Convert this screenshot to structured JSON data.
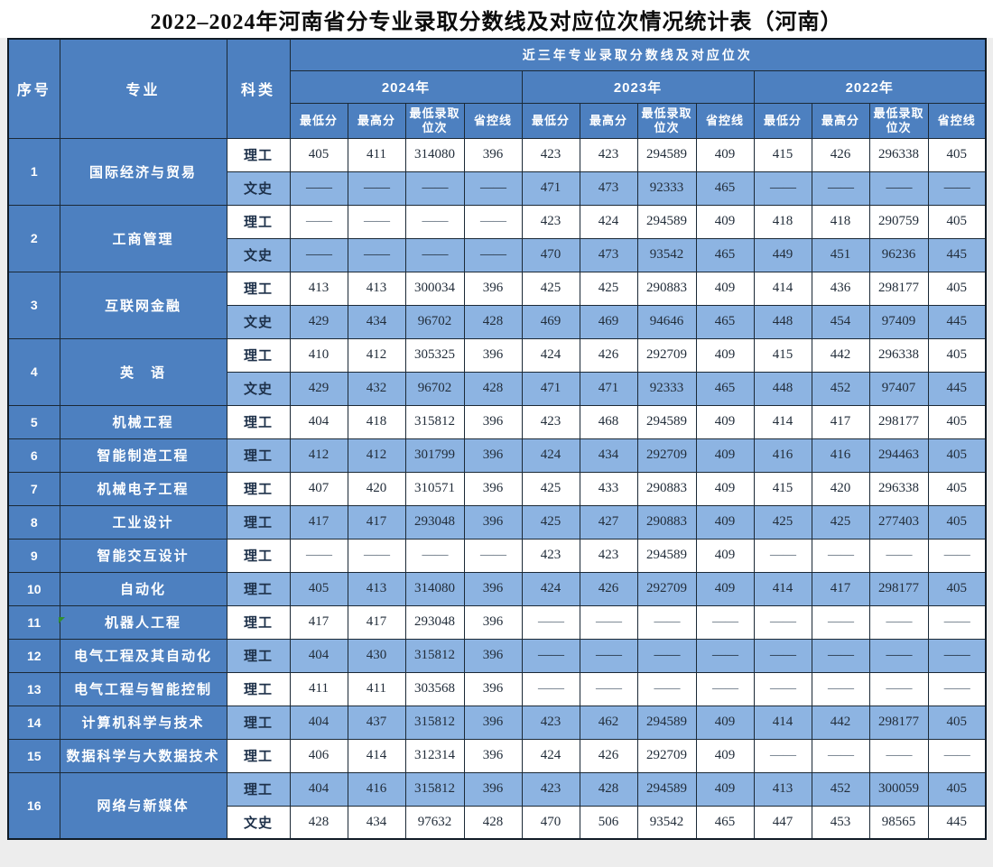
{
  "page": {
    "title": "2022–2024年河南省分专业录取分数线及对应位次情况统计表（河南）"
  },
  "colors": {
    "header_blue": "#4d80c0",
    "zebra_light_blue": "#8db4e2",
    "zebra_white": "#ffffff",
    "grid_border": "#1b2936",
    "flag_green": "#2f8f2f"
  },
  "table": {
    "corner": {
      "index": "序号",
      "major": "专业",
      "category": "科类"
    },
    "span_header": "近三年专业录取分数线及对应位次",
    "year_groups": [
      "2024年",
      "2023年",
      "2022年"
    ],
    "metric_headers": [
      "最低分",
      "最高分",
      "最低录取位次",
      "省控线"
    ],
    "empty_marker": "——",
    "rows": [
      {
        "index": "1",
        "major": "国际经济与贸易",
        "subrows": [
          {
            "category": "理工",
            "values": [
              "405",
              "411",
              "314080",
              "396",
              "423",
              "423",
              "294589",
              "409",
              "415",
              "426",
              "296338",
              "405"
            ]
          },
          {
            "category": "文史",
            "values": [
              "——",
              "——",
              "——",
              "——",
              "471",
              "473",
              "92333",
              "465",
              "——",
              "——",
              "——",
              "——"
            ]
          }
        ]
      },
      {
        "index": "2",
        "major": "工商管理",
        "subrows": [
          {
            "category": "理工",
            "values": [
              "——",
              "——",
              "——",
              "——",
              "423",
              "424",
              "294589",
              "409",
              "418",
              "418",
              "290759",
              "405"
            ]
          },
          {
            "category": "文史",
            "values": [
              "——",
              "——",
              "——",
              "——",
              "470",
              "473",
              "93542",
              "465",
              "449",
              "451",
              "96236",
              "445"
            ]
          }
        ]
      },
      {
        "index": "3",
        "major": "互联网金融",
        "subrows": [
          {
            "category": "理工",
            "values": [
              "413",
              "413",
              "300034",
              "396",
              "425",
              "425",
              "290883",
              "409",
              "414",
              "436",
              "298177",
              "405"
            ]
          },
          {
            "category": "文史",
            "values": [
              "429",
              "434",
              "96702",
              "428",
              "469",
              "469",
              "94646",
              "465",
              "448",
              "454",
              "97409",
              "445"
            ]
          }
        ]
      },
      {
        "index": "4",
        "major": "英　语",
        "subrows": [
          {
            "category": "理工",
            "values": [
              "410",
              "412",
              "305325",
              "396",
              "424",
              "426",
              "292709",
              "409",
              "415",
              "442",
              "296338",
              "405"
            ]
          },
          {
            "category": "文史",
            "values": [
              "429",
              "432",
              "96702",
              "428",
              "471",
              "471",
              "92333",
              "465",
              "448",
              "452",
              "97407",
              "445"
            ]
          }
        ]
      },
      {
        "index": "5",
        "major": "机械工程",
        "subrows": [
          {
            "category": "理工",
            "values": [
              "404",
              "418",
              "315812",
              "396",
              "423",
              "468",
              "294589",
              "409",
              "414",
              "417",
              "298177",
              "405"
            ]
          }
        ]
      },
      {
        "index": "6",
        "major": "智能制造工程",
        "subrows": [
          {
            "category": "理工",
            "values": [
              "412",
              "412",
              "301799",
              "396",
              "424",
              "434",
              "292709",
              "409",
              "416",
              "416",
              "294463",
              "405"
            ]
          }
        ]
      },
      {
        "index": "7",
        "major": "机械电子工程",
        "subrows": [
          {
            "category": "理工",
            "values": [
              "407",
              "420",
              "310571",
              "396",
              "425",
              "433",
              "290883",
              "409",
              "415",
              "420",
              "296338",
              "405"
            ]
          }
        ]
      },
      {
        "index": "8",
        "major": "工业设计",
        "subrows": [
          {
            "category": "理工",
            "values": [
              "417",
              "417",
              "293048",
              "396",
              "425",
              "427",
              "290883",
              "409",
              "425",
              "425",
              "277403",
              "405"
            ]
          }
        ]
      },
      {
        "index": "9",
        "major": "智能交互设计",
        "subrows": [
          {
            "category": "理工",
            "values": [
              "——",
              "——",
              "——",
              "——",
              "423",
              "423",
              "294589",
              "409",
              "——",
              "——",
              "——",
              "——"
            ]
          }
        ]
      },
      {
        "index": "10",
        "major": "自动化",
        "subrows": [
          {
            "category": "理工",
            "values": [
              "405",
              "413",
              "314080",
              "396",
              "424",
              "426",
              "292709",
              "409",
              "414",
              "417",
              "298177",
              "405"
            ]
          }
        ]
      },
      {
        "index": "11",
        "major": "机器人工程",
        "subrows": [
          {
            "category": "理工",
            "values": [
              "417",
              "417",
              "293048",
              "396",
              "——",
              "——",
              "——",
              "——",
              "——",
              "——",
              "——",
              "——"
            ]
          }
        ]
      },
      {
        "index": "12",
        "major": "电气工程及其自动化",
        "subrows": [
          {
            "category": "理工",
            "values": [
              "404",
              "430",
              "315812",
              "396",
              "——",
              "——",
              "——",
              "——",
              "——",
              "——",
              "——",
              "——"
            ]
          }
        ]
      },
      {
        "index": "13",
        "major": "电气工程与智能控制",
        "subrows": [
          {
            "category": "理工",
            "values": [
              "411",
              "411",
              "303568",
              "396",
              "——",
              "——",
              "——",
              "——",
              "——",
              "——",
              "——",
              "——"
            ]
          }
        ]
      },
      {
        "index": "14",
        "major": "计算机科学与技术",
        "subrows": [
          {
            "category": "理工",
            "values": [
              "404",
              "437",
              "315812",
              "396",
              "423",
              "462",
              "294589",
              "409",
              "414",
              "442",
              "298177",
              "405"
            ]
          }
        ]
      },
      {
        "index": "15",
        "major": "数据科学与大数据技术",
        "subrows": [
          {
            "category": "理工",
            "values": [
              "406",
              "414",
              "312314",
              "396",
              "424",
              "426",
              "292709",
              "409",
              "——",
              "——",
              "——",
              "——"
            ]
          }
        ]
      },
      {
        "index": "16",
        "major": "网络与新媒体",
        "subrows": [
          {
            "category": "理工",
            "values": [
              "404",
              "416",
              "315812",
              "396",
              "423",
              "428",
              "294589",
              "409",
              "413",
              "452",
              "300059",
              "405"
            ]
          },
          {
            "category": "文史",
            "values": [
              "428",
              "434",
              "97632",
              "428",
              "470",
              "506",
              "93542",
              "465",
              "447",
              "453",
              "98565",
              "445"
            ]
          }
        ]
      }
    ]
  }
}
